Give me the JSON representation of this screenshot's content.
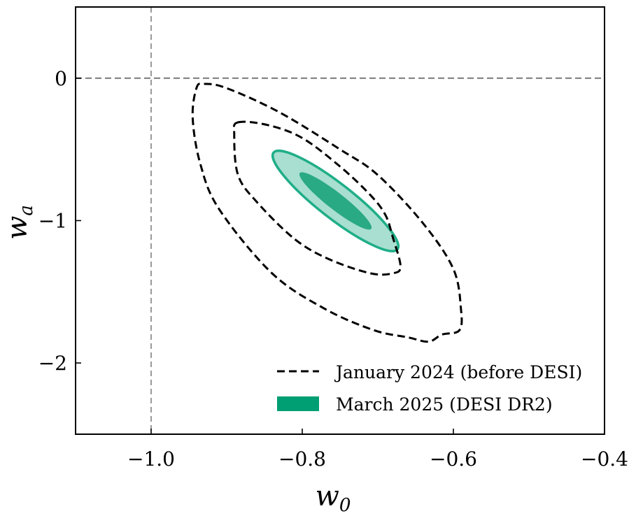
{
  "chart_data": {
    "type": "contour",
    "xlabel": "w",
    "xlabel_sub": "0",
    "ylabel": "w",
    "ylabel_sub": "a",
    "xlim": [
      -1.1,
      -0.4
    ],
    "ylim": [
      -2.5,
      0.5
    ],
    "xticks": [
      -1.0,
      -0.8,
      -0.6,
      -0.4
    ],
    "xtick_labels": [
      "−1.0",
      "−0.8",
      "−0.6",
      "−0.4"
    ],
    "yticks": [
      0,
      -1,
      -2
    ],
    "ytick_labels": [
      "0",
      "−1",
      "−2"
    ],
    "reference_lines": {
      "w0": -1.0,
      "wa": 0.0,
      "color": "#808080",
      "style": "dashed"
    },
    "colors": {
      "desi_fill_inner": "#2aa985",
      "desi_fill_outer": "#a8dfd0",
      "desi_edge": "#1fae88",
      "jan2024": "#000000",
      "legend_patch": "#009e73"
    },
    "legend": {
      "position": "lower-right",
      "entries": [
        {
          "label": "January 2024 (before DESI)",
          "style": "dashed-line"
        },
        {
          "label": "March 2025 (DESI DR2)",
          "style": "filled-patch"
        }
      ]
    },
    "series": [
      {
        "name": "March 2025 (DESI DR2) 2σ",
        "kind": "filled-ellipse",
        "center": [
          -0.756,
          -0.862
        ],
        "semi_axes": [
          0.52,
          0.071
        ],
        "angle_deg": -38.0
      },
      {
        "name": "March 2025 (DESI DR2) 1σ",
        "kind": "filled-ellipse",
        "center": [
          -0.756,
          -0.862
        ],
        "semi_axes": [
          0.3,
          0.035
        ],
        "angle_deg": -38.0
      },
      {
        "name": "January 2024 (before DESI) inner",
        "kind": "dashed-contour",
        "points": [
          [
            -0.885,
            -0.31
          ],
          [
            -0.845,
            -0.33
          ],
          [
            -0.8,
            -0.42
          ],
          [
            -0.75,
            -0.62
          ],
          [
            -0.71,
            -0.82
          ],
          [
            -0.69,
            -0.96
          ],
          [
            -0.68,
            -1.12
          ],
          [
            -0.67,
            -1.32
          ],
          [
            -0.68,
            -1.37
          ],
          [
            -0.71,
            -1.37
          ],
          [
            -0.765,
            -1.27
          ],
          [
            -0.81,
            -1.13
          ],
          [
            -0.86,
            -0.87
          ],
          [
            -0.885,
            -0.68
          ],
          [
            -0.89,
            -0.4
          ]
        ]
      },
      {
        "name": "January 2024 (before DESI) outer",
        "kind": "dashed-contour",
        "points": [
          [
            -0.93,
            -0.04
          ],
          [
            -0.9,
            -0.07
          ],
          [
            -0.83,
            -0.24
          ],
          [
            -0.75,
            -0.5
          ],
          [
            -0.7,
            -0.68
          ],
          [
            -0.64,
            -1.02
          ],
          [
            -0.6,
            -1.34
          ],
          [
            -0.59,
            -1.62
          ],
          [
            -0.592,
            -1.77
          ],
          [
            -0.615,
            -1.8
          ],
          [
            -0.633,
            -1.85
          ],
          [
            -0.66,
            -1.82
          ],
          [
            -0.705,
            -1.77
          ],
          [
            -0.77,
            -1.62
          ],
          [
            -0.84,
            -1.37
          ],
          [
            -0.91,
            -0.92
          ],
          [
            -0.935,
            -0.6
          ],
          [
            -0.945,
            -0.28
          ],
          [
            -0.94,
            -0.07
          ]
        ]
      }
    ]
  }
}
